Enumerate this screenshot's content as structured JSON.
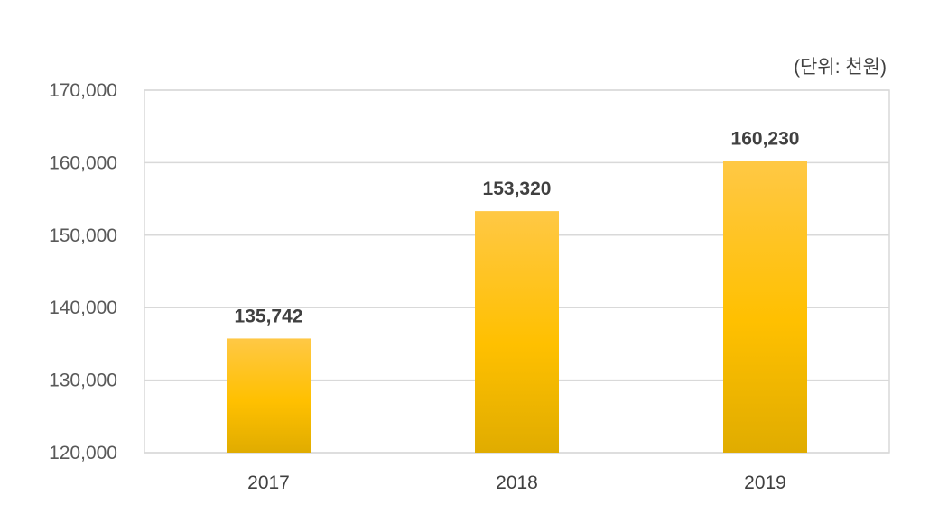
{
  "chart_data": {
    "type": "bar",
    "unit_label": "(단위: 천원)",
    "categories": [
      "2017",
      "2018",
      "2019"
    ],
    "values": [
      135742,
      153320,
      160230
    ],
    "value_labels": [
      "135,742",
      "153,320",
      "160,230"
    ],
    "ylim": [
      120000,
      170000
    ],
    "yticks": [
      120000,
      130000,
      140000,
      150000,
      160000,
      170000
    ],
    "ytick_labels": [
      "120,000",
      "130,000",
      "140,000",
      "150,000",
      "160,000",
      "170,000"
    ],
    "grid": true,
    "legend": "none",
    "colors": {
      "bar_top": "#FFC845",
      "bar_mid": "#FFC000",
      "bar_bottom": "#E0AC00",
      "grid": "#D9D9D9",
      "axis_text": "#595959",
      "label_text": "#404040"
    }
  }
}
